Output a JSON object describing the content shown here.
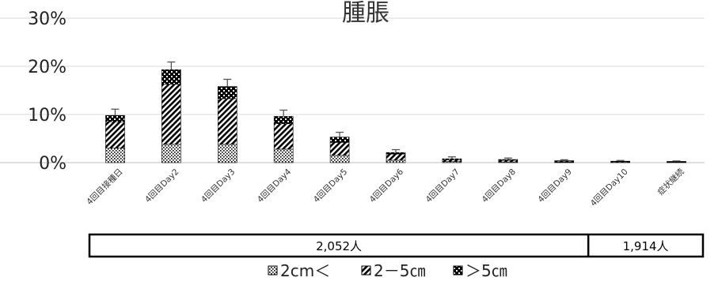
{
  "chart_data": {
    "type": "bar",
    "stacked": true,
    "title": "腫脹",
    "categories": [
      "4回目接種日",
      "4回目Day2",
      "4回目Day3",
      "4回目Day4",
      "4回目Day5",
      "4回目Day6",
      "4回目Day7",
      "4回目Day8",
      "4回目Day9",
      "4回目Day10",
      "症状継続"
    ],
    "series": [
      {
        "name": "2cm＜",
        "pattern": "dots",
        "values": [
          3.0,
          3.8,
          3.8,
          2.8,
          1.5,
          0.5,
          0.2,
          0.15,
          0.1,
          0.05,
          0.05
        ]
      },
      {
        "name": "2－5㎝",
        "pattern": "diagonal",
        "values": [
          5.5,
          12.5,
          9.5,
          5.3,
          2.7,
          1.3,
          0.4,
          0.35,
          0.2,
          0.15,
          0.1
        ]
      },
      {
        "name": "＞5㎝",
        "pattern": "checker",
        "values": [
          1.3,
          3.0,
          2.5,
          1.5,
          1.1,
          0.3,
          0.2,
          0.15,
          0.1,
          0.1,
          0.1
        ]
      }
    ],
    "error_bar_upper": [
      1.3,
      1.6,
      1.5,
      1.3,
      1.0,
      0.6,
      0.4,
      0.3,
      0.2,
      0.15,
      0.1
    ],
    "yticks": [
      "0%",
      "10%",
      "20%",
      "30%"
    ],
    "ylim": [
      0,
      30
    ],
    "grid": true,
    "legend_position": "bottom",
    "n_groups": [
      {
        "label": "2,052人",
        "first": 0,
        "last": 8
      },
      {
        "label": "1,914人",
        "first": 9,
        "last": 10
      }
    ],
    "colors": {
      "bar_fill": "#000000",
      "pattern_bg": "#ffffff",
      "grid": "#d9d9d9",
      "axis": "#bfbfbf"
    }
  }
}
